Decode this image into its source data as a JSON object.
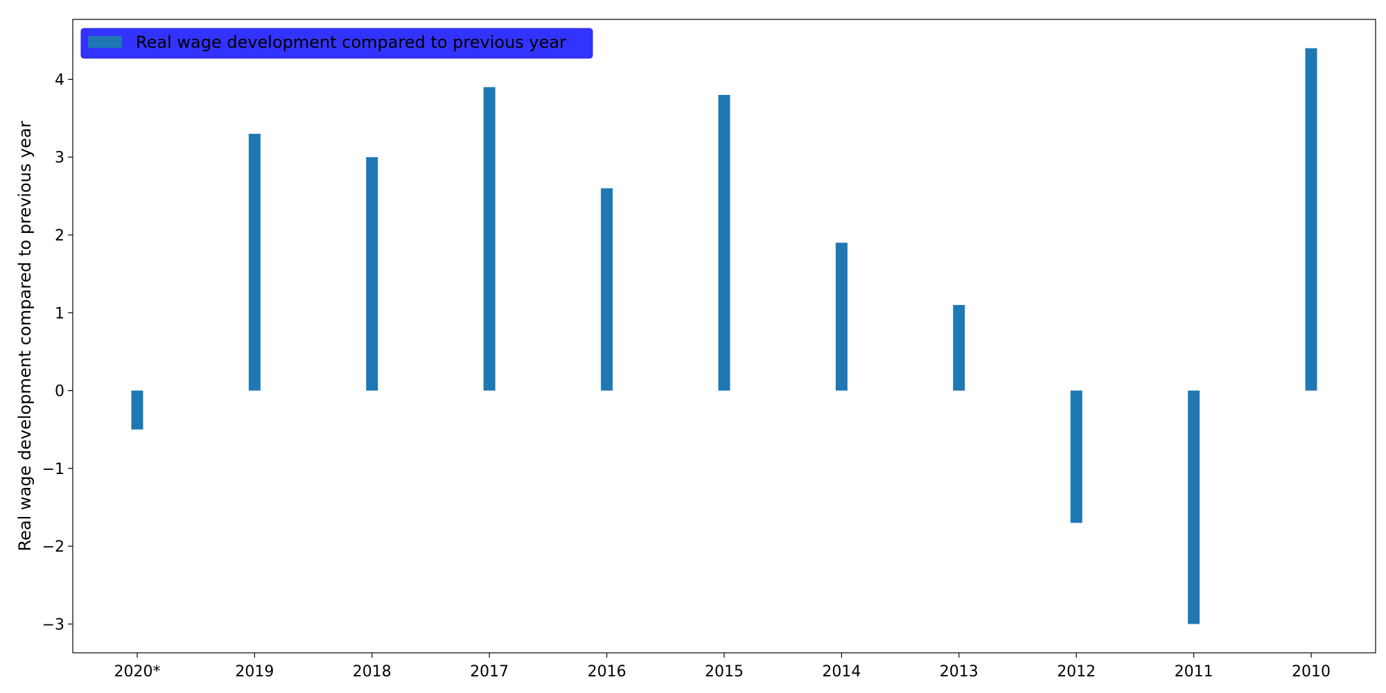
{
  "chart_data": {
    "type": "bar",
    "categories": [
      "2020*",
      "2019",
      "2018",
      "2017",
      "2016",
      "2015",
      "2014",
      "2013",
      "2012",
      "2011",
      "2010"
    ],
    "series": [
      {
        "name": "Real wage development compared to previous year",
        "values": [
          -0.5,
          3.3,
          3.0,
          3.9,
          2.6,
          3.8,
          1.9,
          1.1,
          -1.7,
          -3.0,
          4.4
        ]
      }
    ],
    "ylabel": "Real wage development compared to previous year",
    "xlabel": "",
    "yticks": [
      -3,
      -2,
      -1,
      0,
      1,
      2,
      3,
      4
    ],
    "ytick_labels": [
      "−3",
      "−2",
      "−1",
      "0",
      "1",
      "2",
      "3",
      "4"
    ],
    "ylim": [
      -3.37,
      4.77
    ],
    "grid": false,
    "legend_position": "top-left",
    "colors": {
      "bar": "#1f77b4",
      "legend_background": "#3333ff",
      "frame": "#000000"
    }
  }
}
